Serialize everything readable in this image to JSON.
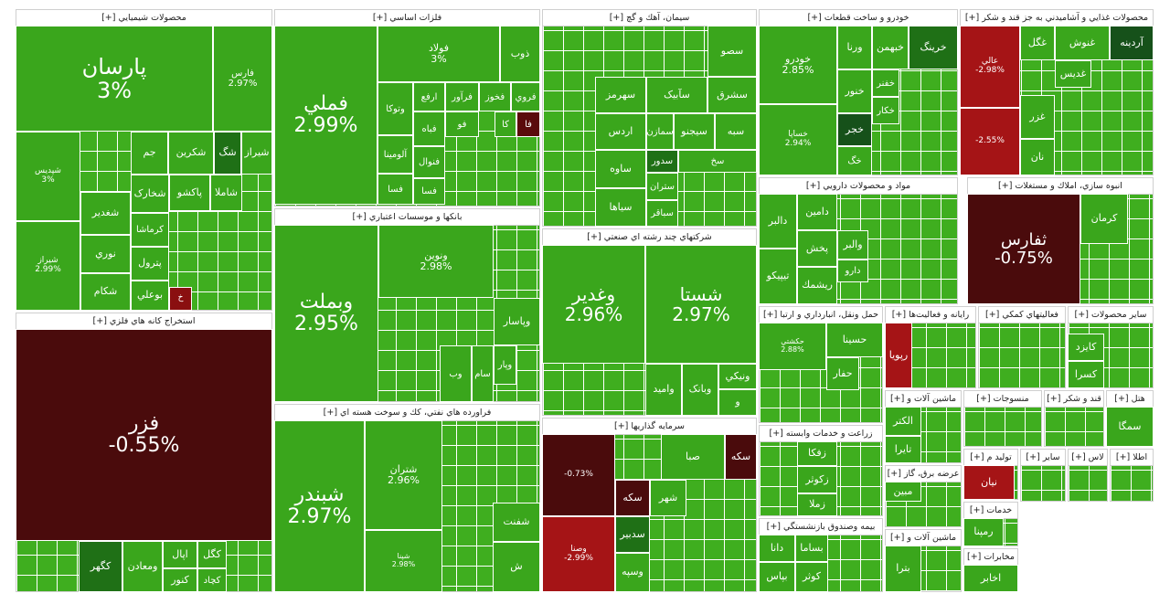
{
  "sectors": [
    {
      "title": "محصولات شيميايي [+]",
      "tiles": [
        {
          "name": "پارسان",
          "change": "3%"
        },
        {
          "name": "فارس",
          "change": "2.97%"
        },
        {
          "name": "شپدیس",
          "change": "3%"
        },
        {
          "name": "شیراز",
          "change": "2.99%"
        },
        {
          "name": "جم"
        },
        {
          "name": "شکرين"
        },
        {
          "name": "شگ",
          "color": "#1f7016"
        },
        {
          "name": "شيراز"
        },
        {
          "name": "شغدير"
        },
        {
          "name": "نوري"
        },
        {
          "name": "شکام"
        },
        {
          "name": "شخارک"
        },
        {
          "name": "کرماشا"
        },
        {
          "name": "پترول"
        },
        {
          "name": "بوعلي"
        },
        {
          "name": "پاکشو"
        },
        {
          "name": "شاملا"
        },
        {
          "name": "خ",
          "color": "#8a0f10"
        }
      ]
    },
    {
      "title": "استخراج کانه هاي فلزي [+]",
      "tiles": [
        {
          "name": "فزر",
          "change": "-0.55%",
          "color": "#4a0b0c"
        },
        {
          "name": "کگهر",
          "color": "#1f7016"
        },
        {
          "name": "ومعادن"
        },
        {
          "name": "اپال"
        },
        {
          "name": "کگل"
        },
        {
          "name": "کچاد"
        },
        {
          "name": "کنور"
        }
      ]
    },
    {
      "title": "فلزات اساسي [+]",
      "tiles": [
        {
          "name": "فملي",
          "change": "2.99%"
        },
        {
          "name": "فولاد",
          "change": "3%"
        },
        {
          "name": "ذوب"
        },
        {
          "name": "فروي"
        },
        {
          "name": "فخوز"
        },
        {
          "name": "فرآور"
        },
        {
          "name": "ارفع"
        },
        {
          "name": "وتوکا"
        },
        {
          "name": "فا",
          "color": "#5a0a0c"
        },
        {
          "name": "کا"
        },
        {
          "name": "فو"
        },
        {
          "name": "فباه"
        },
        {
          "name": "آلومينا"
        },
        {
          "name": "فنوال"
        },
        {
          "name": "فسا"
        },
        {
          "name": "فسا"
        }
      ]
    },
    {
      "title": "بانکها و موسسات اعتباري [+]",
      "tiles": [
        {
          "name": "وبملت",
          "change": "2.95%"
        },
        {
          "name": "ونوين",
          "change": "2.98%"
        },
        {
          "name": "وپاسار"
        },
        {
          "name": "وپار"
        },
        {
          "name": "سام"
        },
        {
          "name": "وب"
        }
      ]
    },
    {
      "title": "فراورده هاي نفتي، کك و سوخت هسته اي [+]",
      "tiles": [
        {
          "name": "شبندر",
          "change": "2.97%"
        },
        {
          "name": "شتران",
          "change": "2.96%"
        },
        {
          "name": "شپنا",
          "change": "2.98%"
        },
        {
          "name": "شفنت"
        },
        {
          "name": "ش"
        }
      ]
    },
    {
      "title": "سيمان، آهك و گچ [+]",
      "tiles": [
        {
          "name": "سصو"
        },
        {
          "name": "سهرمز"
        },
        {
          "name": "سآبيک"
        },
        {
          "name": "سشرق"
        },
        {
          "name": "اردس"
        },
        {
          "name": "سمازن"
        },
        {
          "name": "سيجنو"
        },
        {
          "name": "سبه"
        },
        {
          "name": "ساوه"
        },
        {
          "name": "سدور",
          "color": "#1f7016"
        },
        {
          "name": "سخ"
        },
        {
          "name": "ستران"
        },
        {
          "name": "سياها"
        },
        {
          "name": "سباقر"
        }
      ]
    },
    {
      "title": "شرکتهاي چند رشته اي صنعتي [+]",
      "tiles": [
        {
          "name": "وغدير",
          "change": "2.96%"
        },
        {
          "name": "شستا",
          "change": "2.97%"
        },
        {
          "name": "واميد"
        },
        {
          "name": "وبانک"
        },
        {
          "name": "ونيکي"
        },
        {
          "name": "و"
        }
      ]
    },
    {
      "title": "سرمايه گذاريها [+]",
      "tiles": [
        {
          "change": "-0.73%",
          "color": "#4a0b0c"
        },
        {
          "name": "وصنا",
          "change": "-2.99%",
          "color": "#a51416"
        },
        {
          "name": "صبا"
        },
        {
          "name": "سکه",
          "color": "#4a0b0c"
        },
        {
          "name": "سکه",
          "color": "#4a0b0c"
        },
        {
          "name": "شهر"
        },
        {
          "name": "سدبير",
          "color": "#1f7016"
        },
        {
          "name": "وسپه"
        }
      ]
    },
    {
      "title": "خودرو و ساخت قطعات [+]",
      "tiles": [
        {
          "name": "خودرو",
          "change": "2.85%"
        },
        {
          "name": "خساپا",
          "change": "2.94%"
        },
        {
          "name": "ورنا"
        },
        {
          "name": "خبهمن"
        },
        {
          "name": "خرينگ",
          "color": "#1f7016"
        },
        {
          "name": "خنور"
        },
        {
          "name": "خفنر"
        },
        {
          "name": "خجر",
          "color": "#16511a"
        },
        {
          "name": "خگ"
        },
        {
          "name": "خکار"
        }
      ]
    },
    {
      "title": "مواد و محصولات دارويي [+]",
      "tiles": [
        {
          "name": "دالبر"
        },
        {
          "name": "دامين"
        },
        {
          "name": "پخش"
        },
        {
          "name": "تيپيکو"
        },
        {
          "name": "والبر"
        },
        {
          "name": "دارو"
        },
        {
          "name": "ريشمك"
        }
      ]
    },
    {
      "title": "انبوه سازي، املاك و مستغلات [+]",
      "tiles": [
        {
          "name": "ثفارس",
          "change": "-0.75%",
          "color": "#4a0b0c"
        },
        {
          "name": "کرمان"
        }
      ]
    },
    {
      "title": "محصولات غذايي و آشاميدني به جز قند و شکر [+]",
      "tiles": [
        {
          "name": "عالي",
          "change": "-2.98%",
          "color": "#a51416"
        },
        {
          "change": "-2.55%",
          "color": "#a51416"
        },
        {
          "name": "غگل"
        },
        {
          "name": "غنوش"
        },
        {
          "name": "آردينه",
          "color": "#16511a"
        },
        {
          "name": "غديس"
        },
        {
          "name": "غزر"
        },
        {
          "name": "نان"
        }
      ]
    },
    {
      "title": "حمل ونقل، انبارداري و ارتبا [+]",
      "tiles": [
        {
          "name": "حکشتي",
          "change": "2.88%"
        },
        {
          "name": "حسينا"
        },
        {
          "name": "حفار"
        }
      ]
    },
    {
      "title": "زراعت و خدمات وابسته [+]",
      "tiles": [
        {
          "name": "زفکا"
        },
        {
          "name": "زکوثر"
        },
        {
          "name": "زملا"
        }
      ]
    },
    {
      "title": "بيمه وصندوق بازنشستگي [+]",
      "tiles": [
        {
          "name": "دانا"
        },
        {
          "name": "بساما"
        },
        {
          "name": "کوثر"
        },
        {
          "name": "بپاس"
        }
      ]
    },
    {
      "title": "رايانه و فعاليت‌ها [+]",
      "tiles": [
        {
          "name": "رپويا",
          "color": "#a51416"
        }
      ]
    },
    {
      "title": "فعاليتهاي کمکي [+]",
      "tiles": []
    },
    {
      "title": "ساير محصولات [+]",
      "tiles": [
        {
          "name": "کايزد"
        },
        {
          "name": "کسرا"
        }
      ]
    },
    {
      "title": "ماشين آلات و [+]",
      "tiles": [
        {
          "name": "الکتر"
        },
        {
          "name": "تايرا"
        }
      ]
    },
    {
      "title": "منسوجات [+]",
      "tiles": []
    },
    {
      "title": "قند و شکر [+]",
      "tiles": []
    },
    {
      "title": "هتل [+]",
      "tiles": [
        {
          "name": "سمگا"
        }
      ]
    },
    {
      "title": "عرضه برق، گاز [+]",
      "tiles": [
        {
          "name": "مبين"
        }
      ]
    },
    {
      "title": "ماشين آلات و [+]",
      "tiles": [
        {
          "name": "بترا"
        }
      ]
    },
    {
      "title": "توليد م [+]",
      "tiles": [
        {
          "name": "نيان",
          "color": "#a51416"
        }
      ]
    },
    {
      "title": "ساير [+]",
      "tiles": []
    },
    {
      "title": "لاس [+]",
      "tiles": []
    },
    {
      "title": "اطلا [+]",
      "tiles": []
    },
    {
      "title": "خدمات [+]",
      "tiles": [
        {
          "name": "رمپنا"
        }
      ]
    },
    {
      "title": "مخابرات [+]",
      "tiles": [
        {
          "name": "اخابر"
        }
      ]
    }
  ]
}
